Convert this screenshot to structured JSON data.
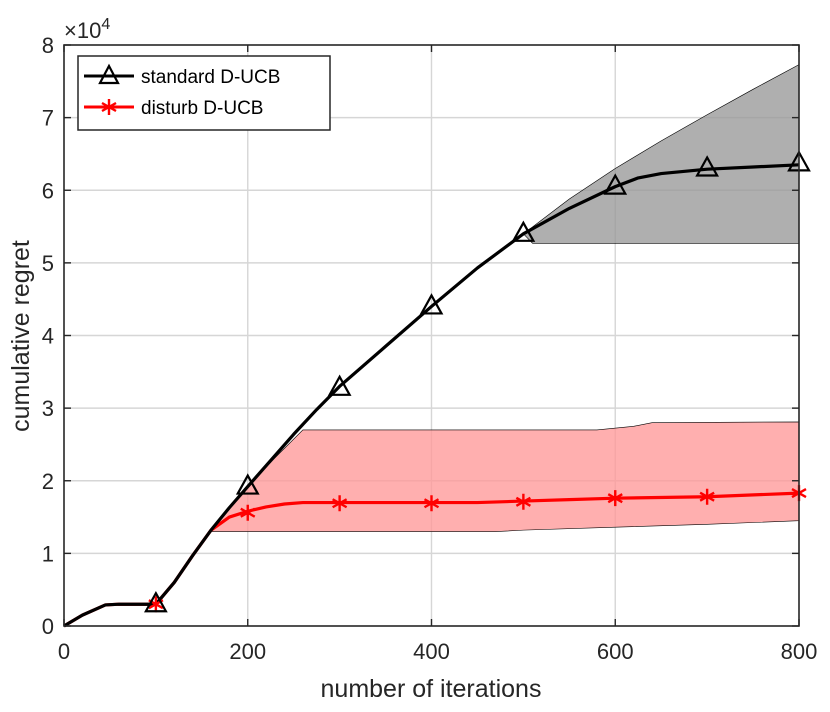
{
  "chart_data": {
    "type": "line",
    "title": "",
    "xlabel": "number of iterations",
    "ylabel": "cumulative regret",
    "xlim": [
      0,
      800
    ],
    "ylim": [
      0,
      80000
    ],
    "x_ticks": [
      0,
      200,
      400,
      600,
      800
    ],
    "y_ticks": [
      0,
      1,
      2,
      3,
      4,
      5,
      6,
      7,
      8
    ],
    "y_exponent_label": "×10",
    "y_exponent_power": "4",
    "y_multiplier": 10000,
    "grid": true,
    "legend_position": "top-left",
    "series": [
      {
        "name": "standard D-UCB",
        "color": "#000000",
        "marker": "triangle",
        "x": [
          0,
          20,
          45,
          60,
          80,
          100,
          120,
          140,
          160,
          180,
          200,
          225,
          250,
          275,
          300,
          350,
          400,
          450,
          500,
          550,
          600,
          625,
          650,
          700,
          750,
          800
        ],
        "y": [
          0,
          1500,
          2900,
          3000,
          3000,
          3000,
          6000,
          9700,
          13200,
          16300,
          19200,
          22800,
          26400,
          29800,
          33000,
          38500,
          44000,
          49300,
          54000,
          57500,
          60500,
          61700,
          62300,
          62900,
          63200,
          63500
        ],
        "marker_x": [
          100,
          200,
          300,
          400,
          500,
          600,
          700,
          800
        ],
        "marker_y": [
          3000,
          19200,
          32800,
          44000,
          54000,
          60500,
          63000,
          63700
        ],
        "band_color": "#999999",
        "band_upper_x": [
          500,
          550,
          600,
          650,
          700,
          750,
          800
        ],
        "band_upper_y": [
          54000,
          58800,
          63000,
          66800,
          70400,
          73900,
          77300
        ],
        "band_lower_x": [
          500,
          510,
          800
        ],
        "band_lower_y": [
          54000,
          52700,
          52700
        ]
      },
      {
        "name": "disturb D-UCB",
        "color": "#ff0000",
        "marker": "asterisk",
        "x": [
          0,
          20,
          45,
          60,
          80,
          100,
          120,
          140,
          160,
          180,
          200,
          220,
          240,
          260,
          280,
          300,
          400,
          450,
          500,
          550,
          600,
          700,
          800
        ],
        "y": [
          0,
          1500,
          2900,
          3000,
          3000,
          3000,
          6000,
          9700,
          13200,
          15000,
          15800,
          16400,
          16800,
          17000,
          17000,
          17000,
          17000,
          17000,
          17200,
          17400,
          17600,
          17800,
          18300
        ],
        "marker_x": [
          100,
          200,
          300,
          400,
          500,
          600,
          700,
          800
        ],
        "marker_y": [
          3000,
          15600,
          16900,
          16900,
          17100,
          17600,
          17800,
          18300
        ],
        "band_color": "#ff9999",
        "band_upper_x": [
          160,
          200,
          230,
          260,
          400,
          580,
          620,
          640,
          800
        ],
        "band_upper_y": [
          13200,
          19200,
          23200,
          27000,
          27000,
          27000,
          27500,
          28000,
          28100
        ],
        "band_lower_x": [
          160,
          200,
          300,
          400,
          470,
          500,
          600,
          700,
          800
        ],
        "band_lower_y": [
          13000,
          13000,
          13000,
          13000,
          13000,
          13200,
          13600,
          14000,
          14500
        ]
      }
    ]
  }
}
